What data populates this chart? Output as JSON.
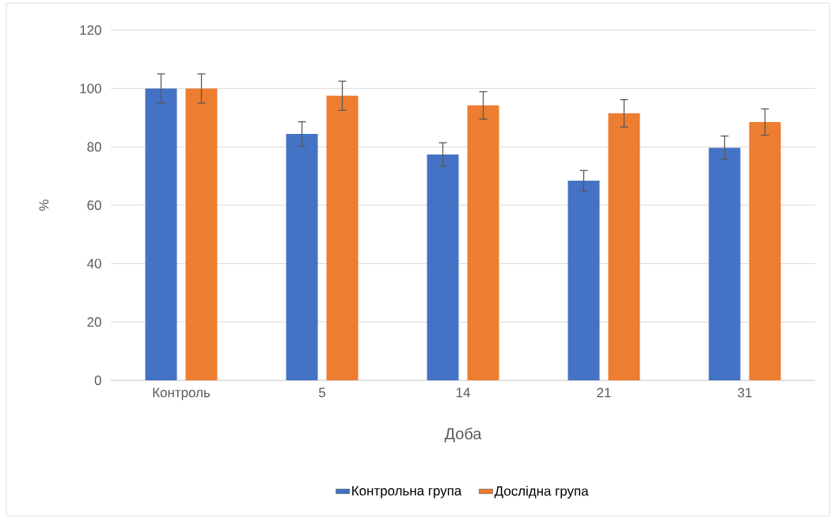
{
  "chart_data": {
    "type": "bar",
    "xlabel": "Доба",
    "ylabel": "%",
    "categories": [
      "Контроль",
      "5",
      "14",
      "21",
      "31"
    ],
    "series": [
      {
        "name": "Контрольна група",
        "color": "#4472c4",
        "values": [
          100,
          84.4,
          77.4,
          68.4,
          79.7
        ],
        "errors": [
          5,
          4.2,
          4,
          3.5,
          4
        ]
      },
      {
        "name": "Дослідна група",
        "color": "#ed7d31",
        "values": [
          100,
          97.5,
          94.2,
          91.5,
          88.5
        ],
        "errors": [
          5,
          5,
          4.7,
          4.7,
          4.5
        ]
      }
    ],
    "ylim": [
      0,
      120
    ],
    "yticks": [
      0,
      20,
      40,
      60,
      80,
      100,
      120
    ],
    "grid": "y",
    "legend": "bottom"
  }
}
